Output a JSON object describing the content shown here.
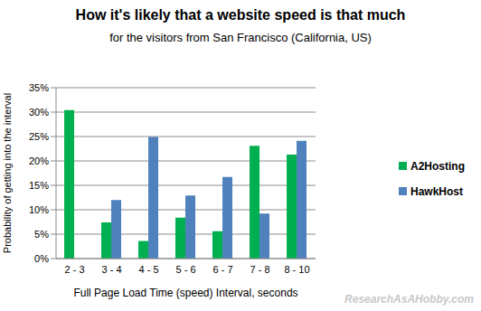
{
  "chart_data": {
    "type": "bar",
    "title": "How it's likely that a website speed is that much",
    "subtitle": "for the visitors from San Francisco (California, US)",
    "x_label": "Full Page Load Time (speed)  Interval, seconds",
    "y_label": "Probability of getting into the interval",
    "annotations": [
      "ResearchAsAHobby.com"
    ],
    "categories": [
      "2 - 3",
      "3 - 4",
      "4 - 5",
      "5 - 6",
      "6 - 7",
      "7 - 8",
      "8 - 10"
    ],
    "series": [
      {
        "name": "A2Hosting",
        "color": "#00b050",
        "values": [
          30.4,
          7.4,
          3.6,
          8.4,
          5.6,
          23.1,
          21.3
        ]
      },
      {
        "name": "HawkHost",
        "color": "#4f81bd",
        "values": [
          0,
          12.0,
          24.9,
          12.9,
          16.7,
          9.2,
          24.1
        ]
      }
    ],
    "ylim": [
      0,
      35
    ],
    "yticks": [
      {
        "value": 0,
        "label": "0%"
      },
      {
        "value": 5,
        "label": "5%"
      },
      {
        "value": 10,
        "label": "10%"
      },
      {
        "value": 15,
        "label": "15%"
      },
      {
        "value": 20,
        "label": "20%"
      },
      {
        "value": 25,
        "label": "25%"
      },
      {
        "value": 30,
        "label": "30%"
      },
      {
        "value": 35,
        "label": "35%"
      }
    ],
    "grid": true,
    "legend": "right"
  }
}
